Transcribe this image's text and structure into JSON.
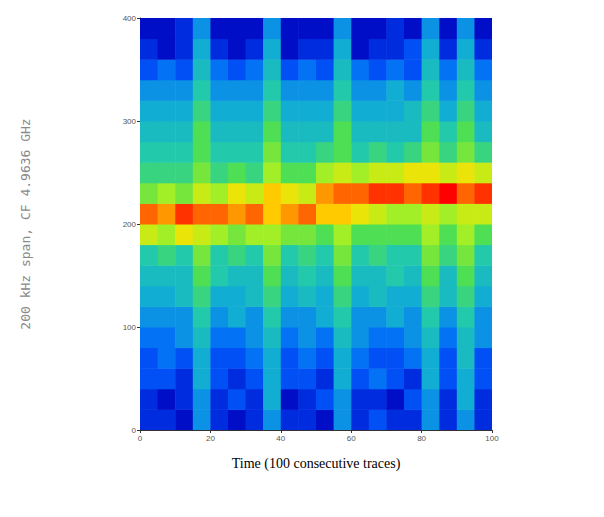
{
  "chart_data": {
    "type": "heatmap",
    "xlabel": "Time (100 consecutive traces)",
    "ylabel": "200 kHz span, CF 4.9636 GHz",
    "xlim": [
      0,
      100
    ],
    "xticks": [
      0,
      20,
      40,
      60,
      80,
      100
    ],
    "ylim": [
      0,
      400
    ],
    "yticks": [
      0,
      100,
      200,
      300,
      400
    ],
    "grid": false,
    "legend": false,
    "x_bins": [
      0,
      5,
      10,
      15,
      20,
      25,
      30,
      35,
      40,
      45,
      50,
      55,
      60,
      65,
      70,
      75,
      80,
      85,
      90,
      95,
      100
    ],
    "y_bins": [
      0,
      20,
      40,
      60,
      80,
      100,
      120,
      140,
      160,
      180,
      200,
      220,
      240,
      260,
      280,
      300,
      320,
      340,
      360,
      380,
      400
    ],
    "zlim": [
      0,
      10
    ],
    "cells": [
      [
        1.5,
        1.5,
        1.0,
        3.0,
        1.5,
        1.0,
        1.5,
        3.0,
        1.5,
        1.5,
        1.0,
        3.0,
        1.5,
        2.0,
        1.5,
        1.5,
        3.0,
        1.5,
        3.0,
        1.5
      ],
      [
        1.5,
        1.0,
        1.5,
        3.0,
        1.5,
        2.0,
        1.5,
        3.5,
        1.0,
        1.5,
        2.0,
        3.0,
        1.5,
        1.5,
        1.0,
        2.0,
        3.0,
        1.5,
        3.5,
        1.5
      ],
      [
        2.0,
        2.0,
        1.5,
        3.5,
        2.0,
        1.5,
        2.0,
        3.5,
        2.0,
        2.0,
        1.5,
        3.5,
        2.0,
        2.5,
        2.0,
        1.5,
        3.5,
        2.0,
        3.5,
        2.0
      ],
      [
        2.0,
        2.5,
        2.0,
        3.5,
        2.0,
        2.0,
        2.5,
        3.5,
        2.0,
        2.5,
        2.0,
        3.5,
        2.5,
        2.0,
        2.0,
        2.5,
        3.5,
        2.0,
        4.0,
        2.0
      ],
      [
        2.5,
        2.5,
        3.0,
        4.0,
        2.5,
        2.5,
        3.0,
        4.0,
        2.5,
        3.0,
        2.5,
        4.0,
        3.0,
        2.5,
        2.5,
        3.0,
        4.0,
        2.5,
        4.0,
        3.0
      ],
      [
        3.0,
        3.0,
        3.0,
        4.5,
        3.0,
        3.5,
        3.0,
        4.5,
        3.0,
        3.0,
        3.5,
        4.5,
        3.0,
        3.0,
        3.5,
        3.0,
        4.5,
        3.0,
        4.5,
        3.0
      ],
      [
        3.5,
        3.5,
        4.0,
        5.0,
        3.5,
        3.5,
        4.0,
        5.0,
        3.5,
        4.0,
        3.5,
        5.0,
        3.5,
        4.0,
        3.5,
        3.5,
        5.0,
        4.0,
        5.0,
        3.5
      ],
      [
        4.0,
        4.0,
        4.0,
        5.5,
        4.5,
        4.0,
        4.0,
        5.5,
        4.0,
        4.5,
        4.0,
        5.5,
        4.0,
        4.0,
        4.5,
        4.0,
        5.5,
        4.0,
        5.5,
        4.0
      ],
      [
        4.5,
        5.0,
        4.5,
        6.0,
        4.5,
        5.0,
        4.5,
        6.0,
        4.5,
        5.0,
        4.5,
        6.0,
        4.5,
        5.0,
        4.5,
        4.5,
        6.0,
        5.0,
        6.0,
        4.5
      ],
      [
        7.0,
        6.5,
        7.5,
        7.0,
        6.5,
        6.0,
        6.5,
        6.5,
        6.0,
        6.0,
        5.5,
        6.5,
        5.5,
        5.5,
        5.5,
        5.5,
        6.5,
        5.5,
        6.5,
        5.5
      ],
      [
        9.0,
        8.5,
        9.5,
        9.0,
        9.0,
        8.5,
        9.0,
        8.0,
        8.5,
        9.0,
        8.0,
        8.0,
        7.5,
        7.0,
        6.5,
        6.5,
        7.0,
        6.5,
        7.0,
        7.0
      ],
      [
        6.0,
        6.5,
        6.0,
        7.0,
        6.5,
        7.5,
        7.0,
        8.0,
        7.5,
        7.0,
        8.5,
        9.0,
        9.0,
        9.5,
        9.5,
        9.0,
        9.5,
        10.0,
        9.0,
        9.5
      ],
      [
        5.0,
        5.0,
        5.0,
        6.0,
        5.0,
        5.5,
        5.0,
        6.5,
        5.5,
        5.5,
        6.5,
        7.0,
        6.5,
        7.0,
        7.0,
        7.5,
        7.5,
        7.0,
        7.5,
        7.0
      ],
      [
        4.5,
        4.5,
        4.5,
        5.5,
        4.5,
        4.5,
        4.5,
        6.0,
        4.5,
        4.5,
        5.0,
        5.5,
        4.5,
        5.0,
        4.5,
        5.0,
        6.0,
        5.0,
        6.0,
        5.0
      ],
      [
        4.0,
        4.0,
        4.0,
        5.5,
        4.0,
        4.0,
        4.0,
        5.5,
        4.0,
        4.0,
        4.0,
        5.5,
        4.0,
        4.0,
        4.0,
        4.0,
        5.5,
        4.5,
        5.5,
        4.0
      ],
      [
        3.5,
        3.5,
        3.5,
        5.0,
        3.5,
        3.5,
        3.5,
        5.0,
        3.5,
        3.5,
        3.5,
        5.0,
        3.5,
        3.5,
        3.5,
        4.0,
        5.0,
        3.5,
        5.0,
        3.5
      ],
      [
        3.0,
        3.0,
        3.0,
        4.5,
        3.0,
        3.0,
        3.0,
        4.5,
        3.0,
        3.0,
        3.0,
        4.5,
        3.0,
        3.0,
        3.5,
        3.0,
        4.5,
        3.0,
        4.5,
        3.0
      ],
      [
        2.0,
        2.5,
        2.0,
        4.0,
        2.5,
        2.0,
        2.5,
        4.0,
        2.0,
        2.5,
        2.0,
        4.0,
        2.5,
        2.0,
        2.5,
        2.0,
        4.0,
        2.5,
        4.0,
        2.5
      ],
      [
        1.5,
        1.0,
        1.5,
        3.5,
        1.5,
        1.0,
        1.5,
        3.5,
        1.0,
        1.5,
        1.5,
        3.5,
        1.0,
        1.5,
        1.5,
        2.0,
        3.5,
        1.5,
        3.5,
        1.5
      ],
      [
        1.0,
        1.0,
        1.5,
        3.0,
        1.0,
        1.0,
        1.0,
        3.0,
        1.0,
        1.0,
        1.0,
        3.0,
        1.0,
        1.0,
        1.5,
        1.0,
        3.0,
        1.0,
        3.0,
        1.0
      ]
    ]
  }
}
